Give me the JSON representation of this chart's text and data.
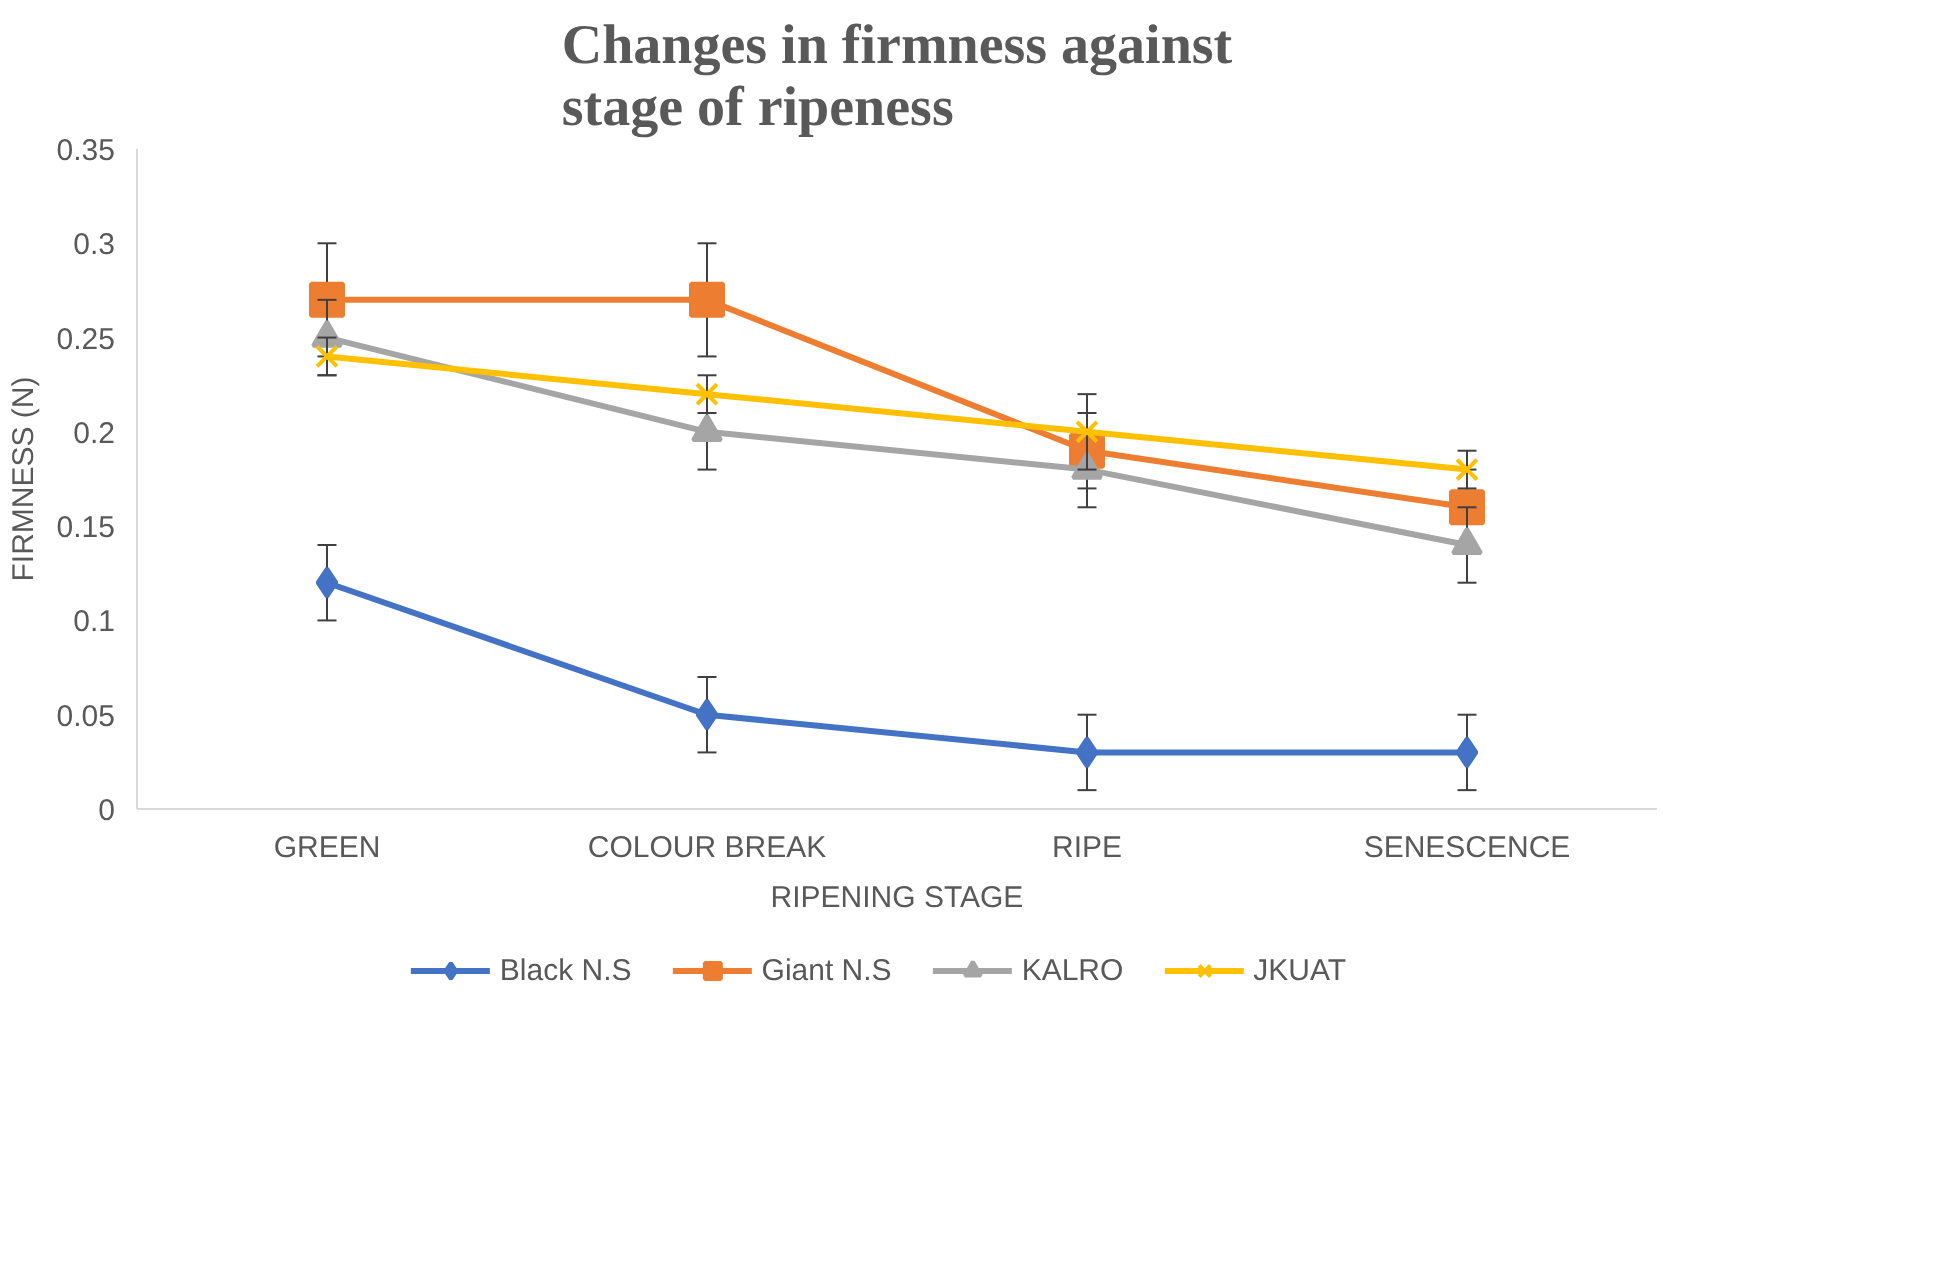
{
  "chart_data": {
    "type": "line",
    "title": "Changes in firmness against stage of ripeness",
    "xlabel": "RIPENING STAGE",
    "ylabel": "FIRMNESS (N)",
    "categories": [
      "GREEN",
      "COLOUR BREAK",
      "RIPE",
      "SENESCENCE"
    ],
    "ylim": [
      0,
      0.35
    ],
    "yticks": [
      0,
      {
        "value": 0.05,
        "label": "0.05"
      },
      {
        "value": 0.1,
        "label": "0.1"
      },
      {
        "value": 0.15,
        "label": "0.15"
      },
      {
        "value": 0.2,
        "label": "0.2"
      },
      {
        "value": 0.25,
        "label": "0.25"
      },
      {
        "value": 0.3,
        "label": "0.3"
      },
      {
        "value": 0.35,
        "label": "0.35"
      }
    ],
    "grid": false,
    "legend": "bottom",
    "line_style": "solid",
    "series": [
      {
        "name": "Black N.S",
        "color": "#4472c4",
        "marker": "diamond",
        "values": [
          0.12,
          0.05,
          0.03,
          0.03
        ],
        "errors": [
          0.02,
          0.02,
          0.02,
          0.02
        ]
      },
      {
        "name": "Giant N.S",
        "color": "#ed7d31",
        "marker": "square",
        "values": [
          0.27,
          0.27,
          0.19,
          0.16
        ],
        "errors": [
          0.03,
          0.03,
          0.02,
          0.02
        ]
      },
      {
        "name": "KALRO",
        "color": "#a5a5a5",
        "marker": "triangle",
        "values": [
          0.25,
          0.2,
          0.18,
          0.14
        ],
        "errors": [
          0.02,
          0.02,
          0.02,
          0.02
        ]
      },
      {
        "name": "JKUAT",
        "color": "#ffc000",
        "marker": "cross",
        "values": [
          0.24,
          0.22,
          0.2,
          0.18
        ],
        "errors": [
          0.01,
          0.01,
          0.02,
          0.01
        ]
      }
    ]
  }
}
